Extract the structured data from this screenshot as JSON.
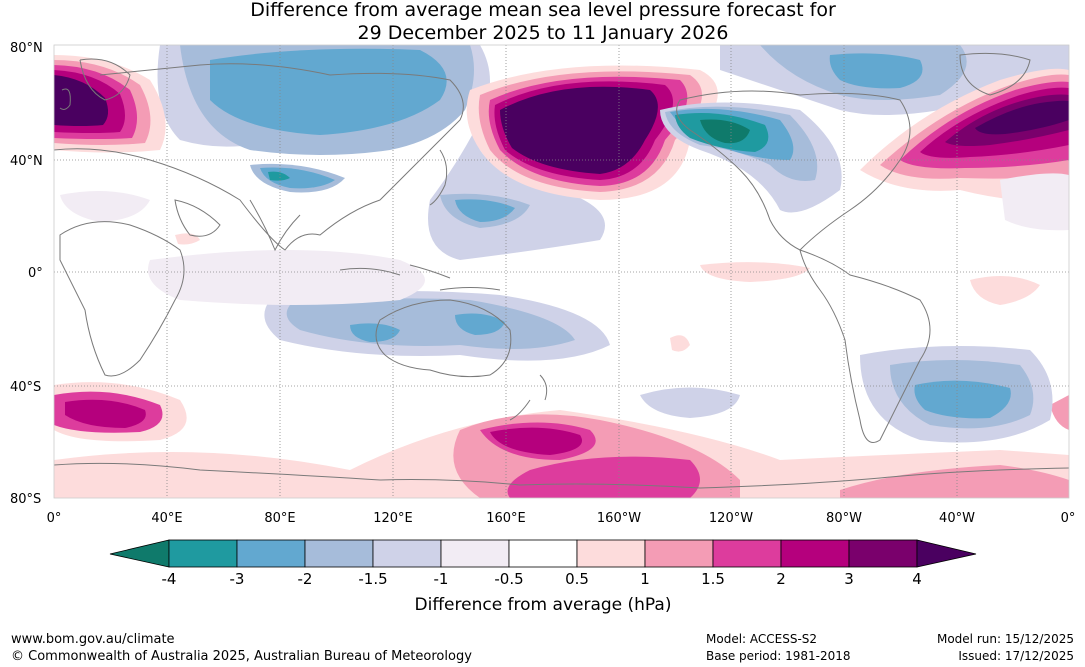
{
  "title": {
    "line1": "Difference from average mean sea level pressure forecast for",
    "line2": "29 December 2025 to 11 January 2026"
  },
  "map": {
    "lat_labels": [
      "80°N",
      "40°N",
      "0°",
      "40°S",
      "80°S"
    ],
    "lon_labels": [
      "0°",
      "40°E",
      "80°E",
      "120°E",
      "160°E",
      "160°W",
      "120°W",
      "80°W",
      "40°W",
      "0°"
    ]
  },
  "colorbar": {
    "ticks": [
      "-4",
      "-3",
      "-2",
      "-1.5",
      "-1",
      "-0.5",
      "0.5",
      "1",
      "1.5",
      "2",
      "3",
      "4"
    ],
    "colors": [
      "#0f7a6b",
      "#1f9aa0",
      "#62a8d0",
      "#a6bcda",
      "#cfd2e8",
      "#f2ecf4",
      "#ffffff",
      "#fddcdc",
      "#f49cb5",
      "#dd3c9d",
      "#b5007d",
      "#7a006c",
      "#4a0060"
    ],
    "label": "Difference from average (hPa)"
  },
  "footer": {
    "website": "www.bom.gov.au/climate",
    "copyright": "© Commonwealth of Australia 2025, Australian Bureau of Meteorology",
    "model": "Model: ACCESS-S2",
    "base_period": "Base period: 1981-2018",
    "model_run": "Model run: 15/12/2025",
    "issued": "Issued: 17/12/2025"
  }
}
